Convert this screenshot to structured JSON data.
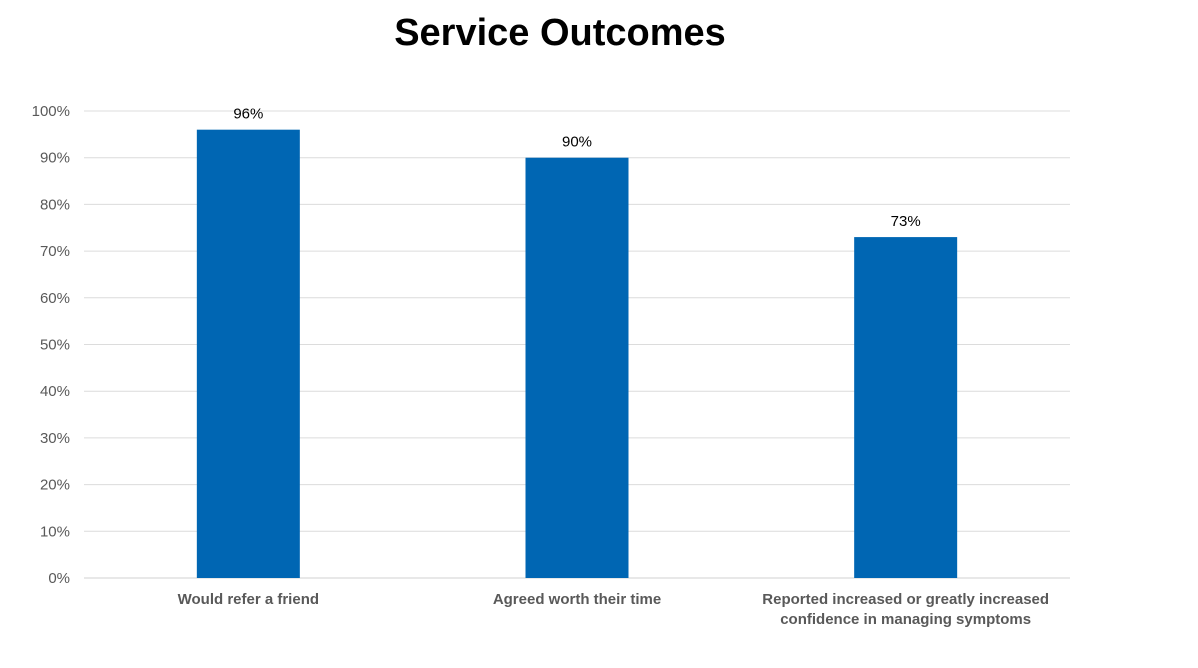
{
  "chart_data": {
    "type": "bar",
    "title": "Service Outcomes",
    "xlabel": "",
    "ylabel": "",
    "categories": [
      "Would refer a friend",
      "Agreed worth their time",
      "Reported increased or greatly increased confidence in managing symptoms"
    ],
    "values": [
      96,
      90,
      73
    ],
    "data_labels": [
      "96%",
      "90%",
      "73%"
    ],
    "ylim": [
      0,
      100
    ],
    "yticks": [
      "0%",
      "10%",
      "20%",
      "30%",
      "40%",
      "50%",
      "60%",
      "70%",
      "80%",
      "90%",
      "100%"
    ],
    "grid": true,
    "legend": "none",
    "bar_color": "#0066B3"
  }
}
